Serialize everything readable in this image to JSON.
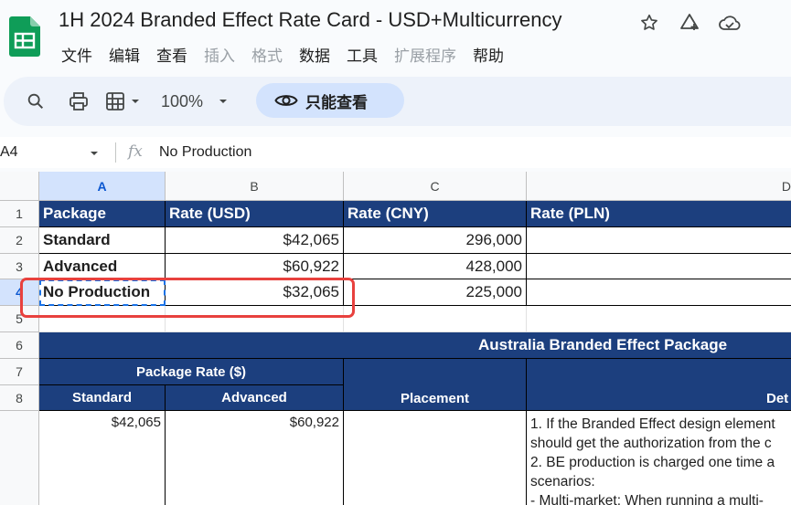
{
  "app": {
    "title": "1H 2024 Branded Effect Rate Card - USD+Multicurrency",
    "menu": [
      "文件",
      "编辑",
      "查看",
      "插入",
      "格式",
      "数据",
      "工具",
      "扩展程序",
      "帮助"
    ],
    "menu_disabled": [
      false,
      false,
      false,
      true,
      true,
      false,
      false,
      true,
      false
    ]
  },
  "toolbar": {
    "zoom": "100%",
    "view_only": "只能查看"
  },
  "formula_bar": {
    "cell_ref": "A4",
    "fx_label": "fx",
    "content": "No Production"
  },
  "columns": [
    "A",
    "B",
    "C",
    "D"
  ],
  "rows": [
    "1",
    "2",
    "3",
    "4",
    "5",
    "6",
    "7",
    "8"
  ],
  "table1": {
    "headers": [
      "Package",
      "Rate (USD)",
      "Rate (CNY)",
      "Rate (PLN)"
    ],
    "rows": [
      [
        "Standard",
        "$42,065",
        "296,000",
        ""
      ],
      [
        "Advanced",
        "$60,922",
        "428,000",
        ""
      ],
      [
        "No Production",
        "$32,065",
        "225,000",
        ""
      ]
    ]
  },
  "table2": {
    "title": "Australia Branded Effect Package",
    "package_rate": "Package Rate ($)",
    "standard": "Standard",
    "advanced": "Advanced",
    "placement": "Placement",
    "details": "Det",
    "standard_value": "$42,065",
    "advanced_value": "$60,922",
    "details_lines": [
      "1. If the Branded Effect design element",
      "should get the authorization from the c",
      "2. BE production is charged one time a",
      "scenarios:",
      "- Multi-market: When running a multi-"
    ]
  },
  "colors": {
    "header_blue": "#1c3f7e",
    "selection_blue": "#d3e3fd",
    "annotation_red": "#e8413e",
    "sheets_green": "#0f9d58"
  }
}
